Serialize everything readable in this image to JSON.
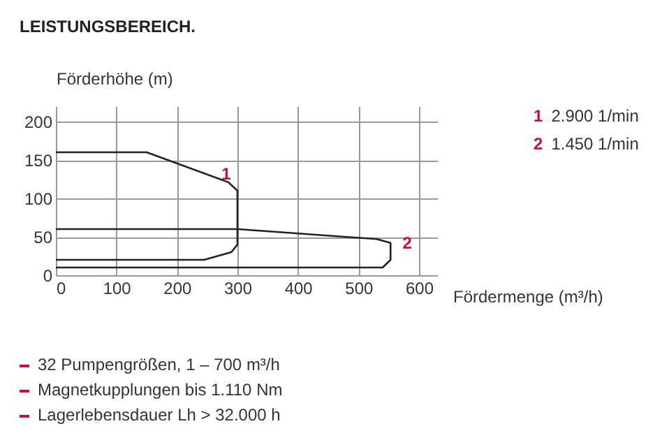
{
  "chart_data": {
    "type": "line",
    "title": "LEISTUNGSBEREICH.",
    "xlabel": "Fördermenge (m³/h)",
    "ylabel": "Förderhöhe (m)",
    "series": [
      {
        "name": "1",
        "color": "#222222",
        "x": [
          0,
          150,
          285,
          300,
          300,
          290,
          245,
          0
        ],
        "values": [
          160,
          160,
          121,
          110,
          40,
          30,
          20,
          20
        ]
      },
      {
        "name": "2",
        "color": "#222222",
        "x": [
          0,
          300,
          530,
          553,
          553,
          540,
          0
        ],
        "values": [
          60,
          60,
          47,
          42,
          20,
          10,
          10
        ]
      }
    ],
    "annotations": [
      "2.900 1/min",
      "1.450 1/min",
      "32 Pumpengrößen, 1 – 700 m³/h",
      "Magnetkupplungen bis 1.110 Nm",
      "Lagerlebensdauer Lh > 32.000 h"
    ],
    "xlim": [
      0,
      630
    ],
    "ylim": [
      0,
      220
    ],
    "xticks": [
      0,
      100,
      200,
      300,
      400,
      500,
      600
    ],
    "yticks": [
      0,
      50,
      100,
      150,
      200
    ],
    "grid": true,
    "legend": "right",
    "marker": "none",
    "line_style": "solid"
  }
}
